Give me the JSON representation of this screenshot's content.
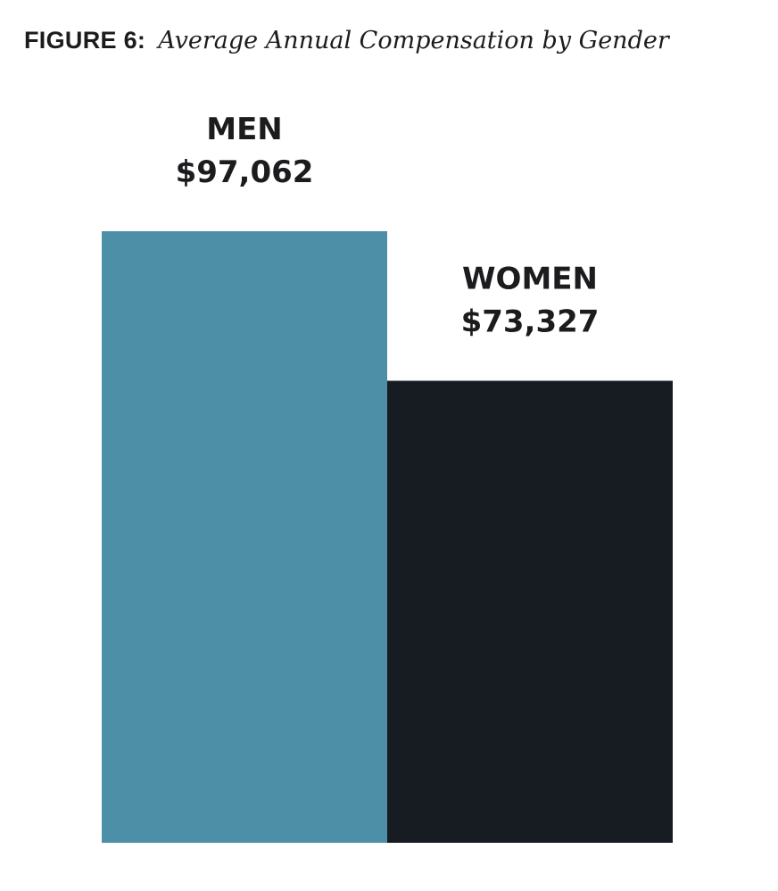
{
  "figure": {
    "label": "FIGURE 6:",
    "caption": "Average Annual Compensation by Gender"
  },
  "chart_data": {
    "type": "bar",
    "title": "Average Annual Compensation by Gender",
    "categories": [
      "MEN",
      "WOMEN"
    ],
    "values": [
      97062,
      73327
    ],
    "value_labels": [
      "$97,062",
      "$73,327"
    ],
    "colors": [
      "#4d8fa6",
      "#171c22"
    ],
    "xlabel": "",
    "ylabel": "",
    "ylim": [
      0,
      97062
    ],
    "grid": false,
    "legend": "none"
  }
}
